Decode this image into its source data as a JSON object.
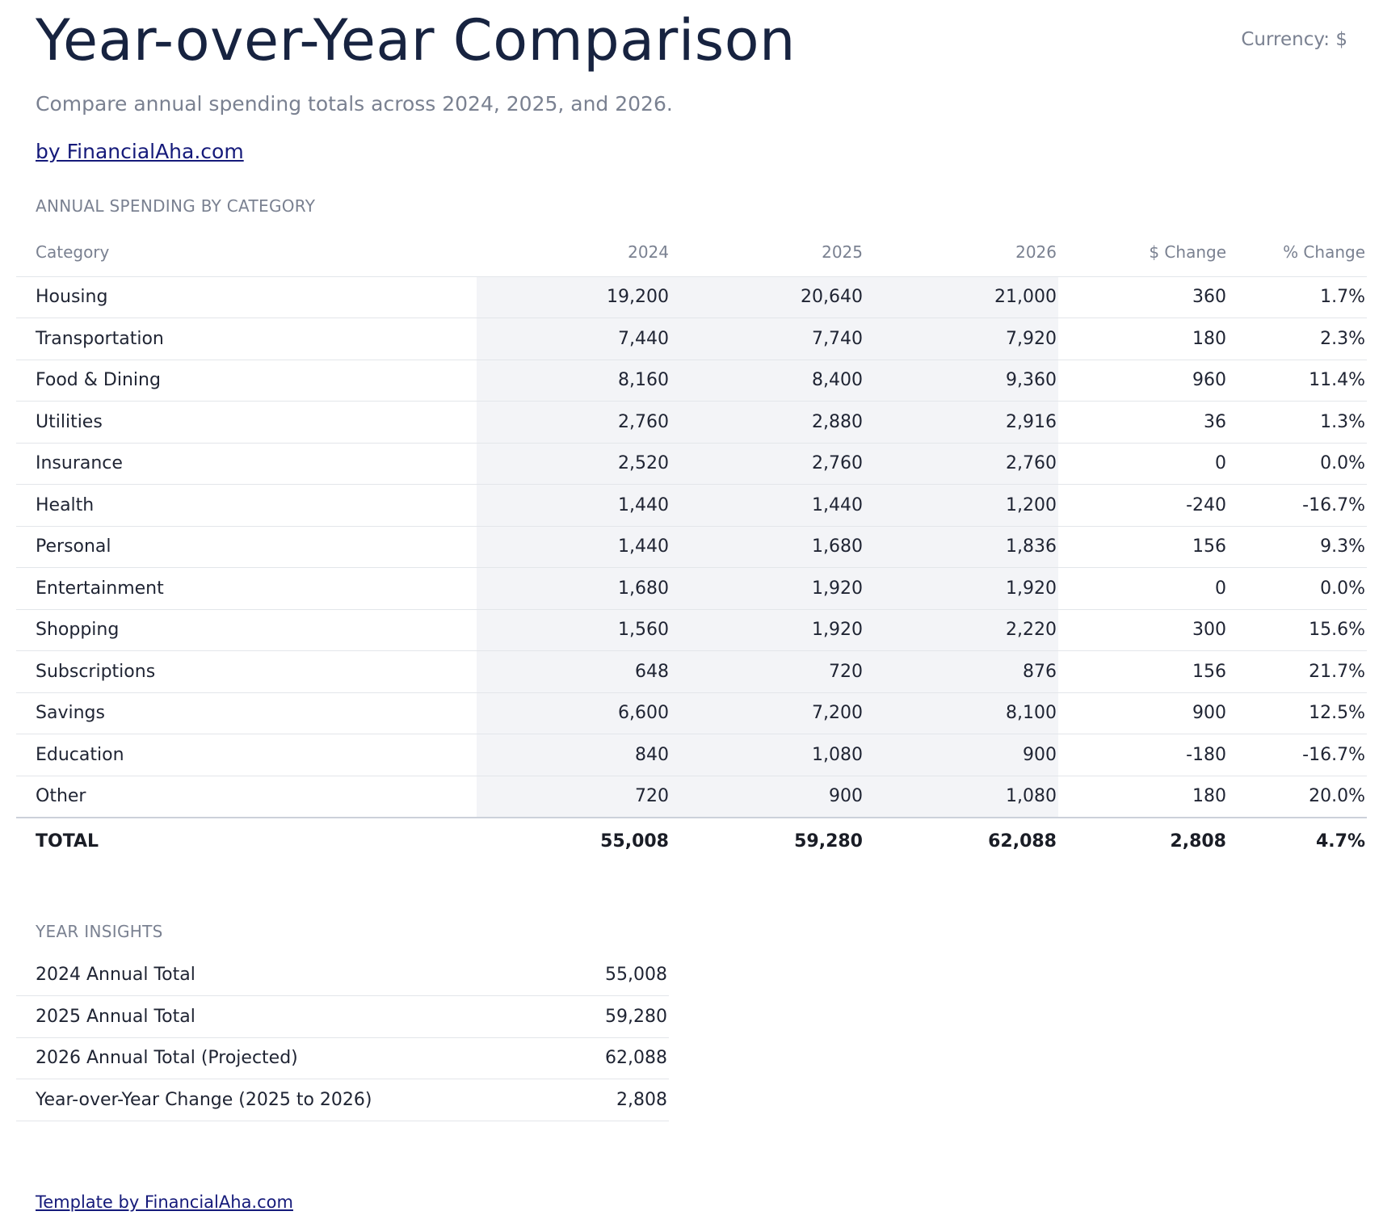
{
  "header": {
    "title": "Year-over-Year Comparison",
    "currency": "Currency: $",
    "subtitle": "Compare annual spending totals across 2024, 2025, and 2026.",
    "byline": "by FinancialAha.com"
  },
  "spending": {
    "section_label": "ANNUAL SPENDING BY CATEGORY",
    "columns": [
      "Category",
      "2024",
      "2025",
      "2026",
      "$ Change",
      "% Change"
    ],
    "rows": [
      {
        "category": "Housing",
        "y2024": "19,200",
        "y2025": "20,640",
        "y2026": "21,000",
        "change": "360",
        "pct": "1.7%"
      },
      {
        "category": "Transportation",
        "y2024": "7,440",
        "y2025": "7,740",
        "y2026": "7,920",
        "change": "180",
        "pct": "2.3%"
      },
      {
        "category": "Food & Dining",
        "y2024": "8,160",
        "y2025": "8,400",
        "y2026": "9,360",
        "change": "960",
        "pct": "11.4%"
      },
      {
        "category": "Utilities",
        "y2024": "2,760",
        "y2025": "2,880",
        "y2026": "2,916",
        "change": "36",
        "pct": "1.3%"
      },
      {
        "category": "Insurance",
        "y2024": "2,520",
        "y2025": "2,760",
        "y2026": "2,760",
        "change": "0",
        "pct": "0.0%"
      },
      {
        "category": "Health",
        "y2024": "1,440",
        "y2025": "1,440",
        "y2026": "1,200",
        "change": "-240",
        "pct": "-16.7%"
      },
      {
        "category": "Personal",
        "y2024": "1,440",
        "y2025": "1,680",
        "y2026": "1,836",
        "change": "156",
        "pct": "9.3%"
      },
      {
        "category": "Entertainment",
        "y2024": "1,680",
        "y2025": "1,920",
        "y2026": "1,920",
        "change": "0",
        "pct": "0.0%"
      },
      {
        "category": "Shopping",
        "y2024": "1,560",
        "y2025": "1,920",
        "y2026": "2,220",
        "change": "300",
        "pct": "15.6%"
      },
      {
        "category": "Subscriptions",
        "y2024": "648",
        "y2025": "720",
        "y2026": "876",
        "change": "156",
        "pct": "21.7%"
      },
      {
        "category": "Savings",
        "y2024": "6,600",
        "y2025": "7,200",
        "y2026": "8,100",
        "change": "900",
        "pct": "12.5%"
      },
      {
        "category": "Education",
        "y2024": "840",
        "y2025": "1,080",
        "y2026": "900",
        "change": "-180",
        "pct": "-16.7%"
      },
      {
        "category": "Other",
        "y2024": "720",
        "y2025": "900",
        "y2026": "1,080",
        "change": "180",
        "pct": "20.0%"
      }
    ],
    "total": {
      "category": "TOTAL",
      "y2024": "55,008",
      "y2025": "59,280",
      "y2026": "62,088",
      "change": "2,808",
      "pct": "4.7%"
    }
  },
  "insights": {
    "section_label": "YEAR INSIGHTS",
    "rows": [
      {
        "label": "2024 Annual Total",
        "value": "55,008"
      },
      {
        "label": "2025 Annual Total",
        "value": "59,280"
      },
      {
        "label": "2026 Annual Total (Projected)",
        "value": "62,088"
      },
      {
        "label": "Year-over-Year Change (2025 to 2026)",
        "value": "2,808"
      }
    ]
  },
  "footer": {
    "link": "Template by FinancialAha.com"
  }
}
